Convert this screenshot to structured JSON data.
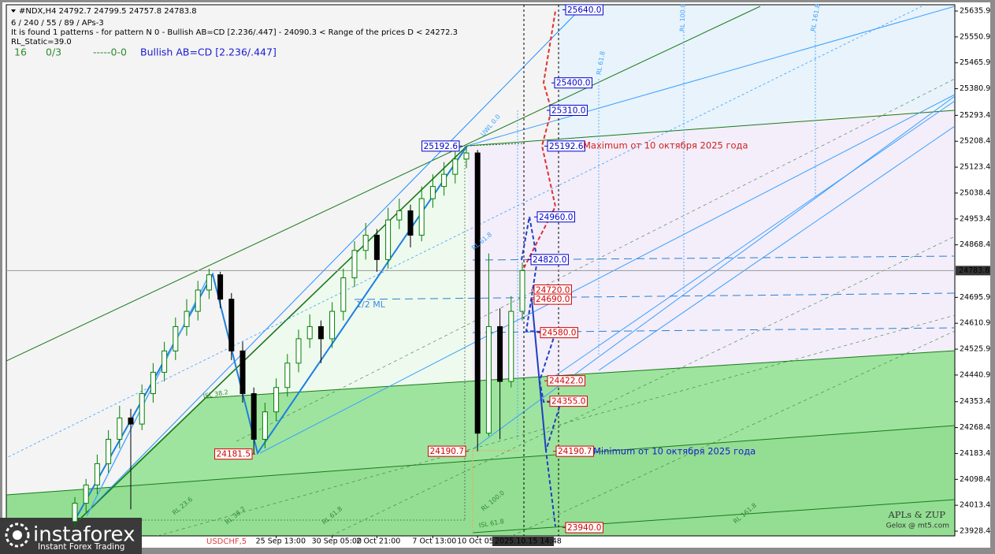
{
  "chart_data": {
    "type": "candlestick",
    "symbol_line": "#NDX,H4  24792.7 24799.5 24757.8 24783.8",
    "info_lines": [
      "6 / 240 / 55 / 89 / APs-3",
      "It is found 1 patterns -  for pattern N 0 - Bullish AB=CD [2.236/.447] - 24090.3 < Range of the prices D < 24272.3",
      "RL_Static=39.0"
    ],
    "status": [
      "16",
      "0/3",
      "-----0-0"
    ],
    "pattern": "Bullish AB=CD [2.236/.447]",
    "categories": [
      null,
      null,
      null,
      null,
      null,
      null,
      null,
      null,
      null,
      null,
      null,
      null,
      null,
      null,
      null,
      null,
      null,
      null,
      "25 Sep 13:00",
      null,
      null,
      null,
      null,
      "30 Sep 05:00",
      null,
      null,
      null,
      "2 Oct 21:00",
      null,
      null,
      null,
      null,
      "7 Oct 13:00",
      null,
      null,
      null,
      "10 Oct 05",
      null,
      null,
      null,
      null
    ],
    "open": [
      23960,
      24020,
      24080,
      24150,
      24230,
      24300,
      24280,
      24380,
      24450,
      24520,
      24600,
      24650,
      24720,
      24770,
      24690,
      24520,
      24380,
      24230,
      24320,
      24400,
      24480,
      24560,
      24600,
      24560,
      24650,
      24760,
      24850,
      24900,
      24820,
      24950,
      24980,
      24900,
      25020,
      25060,
      25100,
      25150,
      25170,
      24250,
      24600,
      24420,
      24650
    ],
    "high": [
      24040,
      24100,
      24180,
      24260,
      24340,
      24330,
      24410,
      24480,
      24550,
      24630,
      24690,
      24750,
      24790,
      24780,
      24710,
      24550,
      24400,
      24350,
      24430,
      24510,
      24590,
      24640,
      24620,
      24680,
      24790,
      24880,
      24940,
      24920,
      24990,
      25020,
      25000,
      25060,
      25100,
      25140,
      25180,
      25192.6,
      25180,
      24840,
      24660,
      24700,
      24810
    ],
    "low": [
      23940,
      23990,
      24050,
      24120,
      24200,
      24000,
      24260,
      24350,
      24420,
      24490,
      24570,
      24620,
      24690,
      24660,
      24490,
      24350,
      24181.5,
      24200,
      24290,
      24370,
      24450,
      24530,
      24480,
      24530,
      24620,
      24730,
      24820,
      24780,
      24790,
      24920,
      24860,
      24880,
      24990,
      25030,
      25070,
      25120,
      24190.7,
      24240,
      24230,
      24400,
      24620
    ],
    "close": [
      24020,
      24080,
      24150,
      24230,
      24300,
      24280,
      24380,
      24450,
      24520,
      24600,
      24650,
      24720,
      24770,
      24690,
      24520,
      24380,
      24230,
      24320,
      24400,
      24480,
      24560,
      24600,
      24560,
      24650,
      24760,
      24850,
      24900,
      24820,
      24950,
      24980,
      24900,
      25020,
      25060,
      25100,
      25150,
      25170,
      24250,
      24600,
      24420,
      24650,
      24783.8
    ],
    "up_color": "#008000",
    "down_color": "#000000",
    "ylim": [
      23912.9,
      25656.6
    ],
    "yticks": [
      25635.9,
      25550.9,
      25465.9,
      25380.9,
      25293.4,
      25208.4,
      25123.4,
      25038.4,
      24953.4,
      24868.4,
      24695.9,
      24610.9,
      24525.9,
      24440.9,
      24353.4,
      24268.4,
      24183.4,
      24098.4,
      24013.4,
      23928.4
    ],
    "last_price": 24783.8,
    "cursor_time": "2025.10.15 14:48",
    "levels": [
      {
        "value": 25640,
        "label": "25640.0",
        "color": "#0000cc"
      },
      {
        "value": 25400,
        "label": "25400.0",
        "color": "#0000cc"
      },
      {
        "value": 25310,
        "label": "25310.0",
        "color": "#0000cc"
      },
      {
        "value": 25192.6,
        "color": "#0000cc"
      },
      {
        "value": 25192.6,
        "color": "#0000cc"
      },
      {
        "value": 24960,
        "label": "24960.0",
        "color": "#0000cc"
      },
      {
        "value": 24820,
        "label": "24820.0",
        "color": "#0000cc"
      },
      {
        "value": 24720,
        "label": "24720.0",
        "color": "#d00000"
      },
      {
        "value": 24690,
        "label": "24690.0",
        "color": "#d00000"
      },
      {
        "value": 24580,
        "label": "24580.0",
        "color": "#d00000"
      },
      {
        "value": 24422,
        "label": "24422.0",
        "color": "#d00000"
      },
      {
        "value": 24355,
        "label": "24355.0",
        "color": "#d00000"
      },
      {
        "value": 24190.7,
        "color": "#d00000"
      },
      {
        "value": 24190.7,
        "color": "#d00000"
      },
      {
        "value": 24181.5,
        "color": "#d00000"
      },
      {
        "value": 23940,
        "label": "23940.0",
        "color": "#d00000"
      }
    ],
    "notes": {
      "max": "Maximum от 10 октября 2025 года",
      "min": "Minimum от 10 октября 2025 года",
      "ml": "1/2 ML",
      "credit1": "APLs & ZUP",
      "credit2": "Gelox @ mt5.com",
      "tab": "USDCHF,5"
    },
    "fib_labels": [
      "RL 61.8",
      "RL 100.0",
      "RL 161.8",
      "ISL 38.2",
      "RL 23.6",
      "RL 38.2",
      "RL 61.8",
      "RL 100.0",
      "RL 161.8",
      "ISL 61.8",
      "UWL 0.0",
      "RL 61.8"
    ]
  },
  "brand": {
    "name": "instaforex",
    "tagline": "Instant Forex Trading"
  }
}
